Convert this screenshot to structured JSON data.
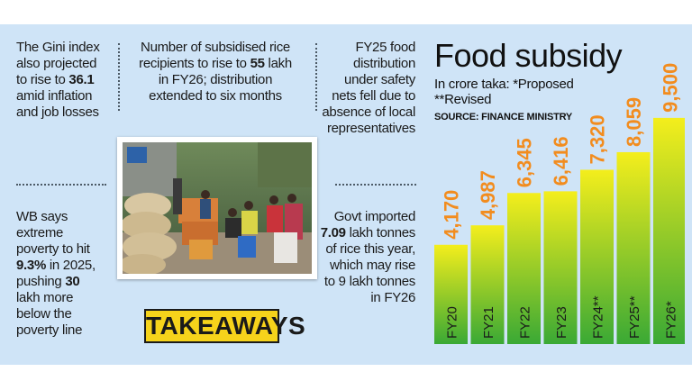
{
  "left_column": {
    "gini": {
      "pre": "The Gini index also projected to rise to ",
      "bold": "36.1",
      "post": " amid inflation and job losses"
    },
    "poverty": {
      "pre": "WB says extreme poverty to hit ",
      "bold1": "9.3%",
      "mid": " in 2025, pushing ",
      "bold2": "30",
      "post": " lakh more below the poverty line"
    }
  },
  "middle_column": {
    "rice": {
      "pre": "Number of subsidised rice recipients to rise to ",
      "bold": "55",
      "post": " lakh in FY26; distribution extended to six months"
    },
    "takeaways": "TAKEAWAYS"
  },
  "right_text": {
    "fy25": "FY25 food distribution under safety nets fell due to absence of local representatives",
    "imports": {
      "pre": "Govt imported ",
      "bold": "7.09",
      "post": " lakh tonnes of rice this year, which may rise to 9 lakh tonnes in FY26"
    }
  },
  "chart_data": {
    "type": "bar",
    "title": "Food subsidy",
    "subtitle": "In crore taka: *Proposed\n**Revised",
    "source": "SOURCE: FINANCE MINISTRY",
    "categories": [
      "FY20",
      "FY21",
      "FY22",
      "FY23",
      "FY24**",
      "FY25**",
      "FY26*"
    ],
    "values": [
      4170,
      4987,
      6345,
      6416,
      7320,
      8059,
      9500
    ],
    "value_labels": [
      "4,170",
      "4,987",
      "6,345",
      "6,416",
      "7,320",
      "8,059",
      "9,500"
    ],
    "ylim": [
      0,
      11500
    ],
    "colors": {
      "bar_top": "#f4ee1c",
      "bar_bottom": "#3aa935",
      "value_label": "#f28c1e",
      "category_label": "#1a1a1a"
    }
  }
}
